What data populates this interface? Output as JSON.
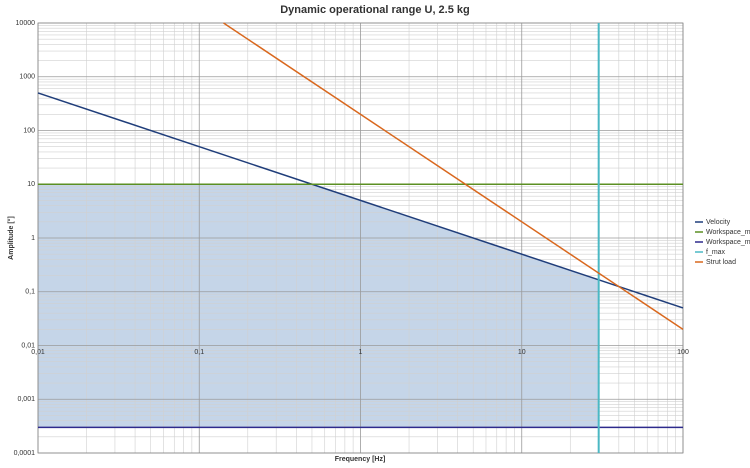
{
  "chart_data": {
    "type": "line",
    "title": "Dynamic operational range U, 2.5 kg",
    "x_label": "Frequency [Hz]",
    "y_label": "Amplitude [°]",
    "log_x": true,
    "log_y": true,
    "grid": true,
    "legend": "right",
    "xlim": [
      0.01,
      100
    ],
    "xticks": [
      {
        "value": 0.01,
        "label": "0,01"
      },
      {
        "value": 0.1,
        "label": "0,1"
      },
      1,
      10,
      100
    ],
    "ylim": [
      0.0001,
      10000
    ],
    "yticks": [
      {
        "value": 0.0001,
        "label": "0,0001"
      },
      {
        "value": 0.001,
        "label": "0,001"
      },
      {
        "value": 0.01,
        "label": "0,01"
      },
      {
        "value": 0.1,
        "label": "0,1"
      },
      1,
      10,
      100,
      1000,
      10000
    ],
    "series": [
      {
        "name": "Velocity",
        "color": "#1f3d7a",
        "x": [
          0.01,
          100
        ],
        "values": [
          500,
          0.05
        ]
      },
      {
        "name": "Workspace_max",
        "color": "#5b8f22",
        "x": [
          0.01,
          100
        ],
        "values": [
          10,
          10
        ]
      },
      {
        "name": "Workspace_min",
        "color": "#2e2a8c",
        "x": [
          0.01,
          100
        ],
        "values": [
          0.0003,
          0.0003
        ]
      },
      {
        "name": "f_max",
        "color": "#4bb8c4",
        "x": [
          30,
          30
        ],
        "values": [
          0.0001,
          10000
        ]
      },
      {
        "name": "Strut load",
        "color": "#d9681e",
        "x": [
          0.1414,
          100
        ],
        "values": [
          10000,
          0.02
        ]
      }
    ]
  }
}
